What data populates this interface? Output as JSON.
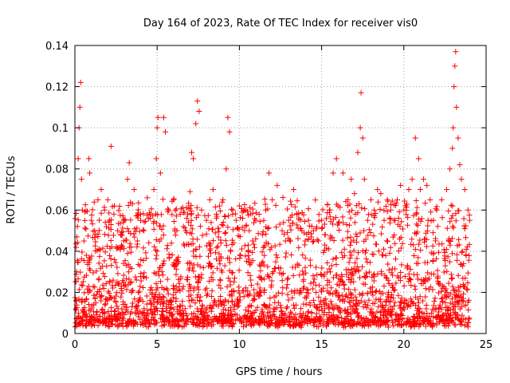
{
  "chart_data": {
    "type": "scatter",
    "title": "Day 164 of 2023, Rate Of TEC Index for receiver vis0",
    "xlabel": "GPS time / hours",
    "ylabel": "ROTI / TECUs",
    "xlim": [
      0,
      25
    ],
    "ylim": [
      0,
      0.14
    ],
    "xticks": [
      "0",
      "5",
      "10",
      "15",
      "20",
      "25"
    ],
    "yticks": [
      "0",
      "0.02",
      "0.04",
      "0.06",
      "0.08",
      "0.1",
      "0.12",
      "0.14"
    ],
    "grid": true,
    "marker": "+",
    "series_color": "#ff0000",
    "points": [
      [
        0.05,
        0.012
      ],
      [
        0.1,
        0.03
      ],
      [
        0.15,
        0.052
      ],
      [
        0.2,
        0.085
      ],
      [
        0.25,
        0.1
      ],
      [
        0.3,
        0.11
      ],
      [
        0.35,
        0.122
      ],
      [
        0.4,
        0.075
      ],
      [
        0.45,
        0.06
      ],
      [
        0.55,
        0.045
      ],
      [
        0.7,
        0.038
      ],
      [
        0.85,
        0.085
      ],
      [
        0.9,
        0.078
      ],
      [
        1.0,
        0.055
      ],
      [
        1.2,
        0.05
      ],
      [
        1.4,
        0.065
      ],
      [
        1.6,
        0.07
      ],
      [
        1.8,
        0.06
      ],
      [
        2.0,
        0.065
      ],
      [
        2.1,
        0.055
      ],
      [
        2.2,
        0.091
      ],
      [
        2.4,
        0.062
      ],
      [
        2.6,
        0.05
      ],
      [
        2.8,
        0.042
      ],
      [
        3.0,
        0.055
      ],
      [
        3.2,
        0.075
      ],
      [
        3.3,
        0.083
      ],
      [
        3.5,
        0.063
      ],
      [
        3.6,
        0.07
      ],
      [
        3.8,
        0.045
      ],
      [
        4.0,
        0.058
      ],
      [
        4.2,
        0.05
      ],
      [
        4.4,
        0.066
      ],
      [
        4.6,
        0.058
      ],
      [
        4.8,
        0.07
      ],
      [
        4.95,
        0.085
      ],
      [
        5.0,
        0.1
      ],
      [
        5.05,
        0.105
      ],
      [
        5.2,
        0.078
      ],
      [
        5.4,
        0.105
      ],
      [
        5.5,
        0.098
      ],
      [
        5.7,
        0.06
      ],
      [
        6.0,
        0.065
      ],
      [
        6.2,
        0.05
      ],
      [
        6.4,
        0.058
      ],
      [
        6.6,
        0.052
      ],
      [
        6.8,
        0.056
      ],
      [
        7.0,
        0.069
      ],
      [
        7.1,
        0.088
      ],
      [
        7.2,
        0.085
      ],
      [
        7.35,
        0.102
      ],
      [
        7.45,
        0.113
      ],
      [
        7.55,
        0.108
      ],
      [
        7.7,
        0.06
      ],
      [
        8.0,
        0.055
      ],
      [
        8.2,
        0.065
      ],
      [
        8.4,
        0.07
      ],
      [
        8.6,
        0.058
      ],
      [
        8.8,
        0.062
      ],
      [
        9.0,
        0.065
      ],
      [
        9.2,
        0.08
      ],
      [
        9.3,
        0.105
      ],
      [
        9.4,
        0.098
      ],
      [
        9.6,
        0.06
      ],
      [
        9.8,
        0.055
      ],
      [
        10.0,
        0.062
      ],
      [
        10.2,
        0.056
      ],
      [
        10.4,
        0.06
      ],
      [
        10.6,
        0.05
      ],
      [
        10.8,
        0.045
      ],
      [
        11.0,
        0.055
      ],
      [
        11.2,
        0.058
      ],
      [
        11.4,
        0.048
      ],
      [
        11.6,
        0.06
      ],
      [
        11.8,
        0.078
      ],
      [
        12.0,
        0.065
      ],
      [
        12.3,
        0.072
      ],
      [
        12.6,
        0.05
      ],
      [
        12.8,
        0.045
      ],
      [
        13.0,
        0.055
      ],
      [
        13.3,
        0.07
      ],
      [
        13.5,
        0.058
      ],
      [
        13.8,
        0.05
      ],
      [
        14.0,
        0.045
      ],
      [
        14.2,
        0.055
      ],
      [
        14.5,
        0.05
      ],
      [
        14.8,
        0.045
      ],
      [
        15.0,
        0.055
      ],
      [
        15.2,
        0.048
      ],
      [
        15.5,
        0.06
      ],
      [
        15.7,
        0.078
      ],
      [
        15.9,
        0.085
      ],
      [
        16.0,
        0.062
      ],
      [
        16.3,
        0.078
      ],
      [
        16.6,
        0.065
      ],
      [
        16.8,
        0.075
      ],
      [
        17.0,
        0.068
      ],
      [
        17.2,
        0.088
      ],
      [
        17.35,
        0.1
      ],
      [
        17.4,
        0.117
      ],
      [
        17.5,
        0.095
      ],
      [
        17.6,
        0.075
      ],
      [
        17.8,
        0.055
      ],
      [
        18.0,
        0.065
      ],
      [
        18.2,
        0.06
      ],
      [
        18.4,
        0.07
      ],
      [
        18.6,
        0.068
      ],
      [
        18.8,
        0.055
      ],
      [
        19.0,
        0.065
      ],
      [
        19.2,
        0.06
      ],
      [
        19.4,
        0.055
      ],
      [
        19.6,
        0.065
      ],
      [
        19.8,
        0.072
      ],
      [
        20.0,
        0.06
      ],
      [
        20.3,
        0.07
      ],
      [
        20.5,
        0.075
      ],
      [
        20.7,
        0.095
      ],
      [
        20.9,
        0.085
      ],
      [
        21.0,
        0.07
      ],
      [
        21.2,
        0.075
      ],
      [
        21.4,
        0.072
      ],
      [
        21.6,
        0.065
      ],
      [
        21.8,
        0.055
      ],
      [
        22.0,
        0.06
      ],
      [
        22.3,
        0.065
      ],
      [
        22.6,
        0.07
      ],
      [
        22.8,
        0.08
      ],
      [
        22.95,
        0.09
      ],
      [
        23.0,
        0.1
      ],
      [
        23.05,
        0.12
      ],
      [
        23.1,
        0.13
      ],
      [
        23.15,
        0.137
      ],
      [
        23.2,
        0.11
      ],
      [
        23.3,
        0.095
      ],
      [
        23.4,
        0.082
      ],
      [
        23.5,
        0.075
      ],
      [
        23.7,
        0.07
      ],
      [
        23.9,
        0.06
      ],
      [
        24.0,
        0.055
      ]
    ]
  }
}
